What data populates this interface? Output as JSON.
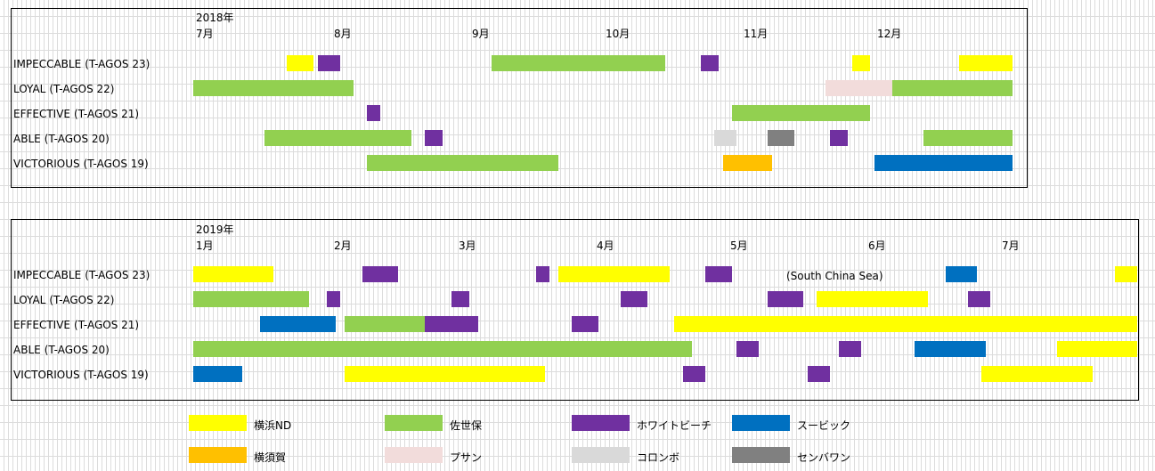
{
  "colors": {
    "yokohama": "#ffff00",
    "sasebo": "#92d050",
    "white_beach": "#7030a0",
    "subic": "#0070c0",
    "yokosuka": "#ffc000",
    "busan": "#f2dcdb",
    "colombo": "#d9d9d9",
    "sembawang": "#808080"
  },
  "legend": [
    {
      "key": "yokohama",
      "label": "横浜ND"
    },
    {
      "key": "sasebo",
      "label": "佐世保"
    },
    {
      "key": "white_beach",
      "label": "ホワイトビーチ"
    },
    {
      "key": "subic",
      "label": "スービック"
    },
    {
      "key": "yokosuka",
      "label": "横須賀"
    },
    {
      "key": "busan",
      "label": "プサン"
    },
    {
      "key": "colombo",
      "label": "コロンボ"
    },
    {
      "key": "sembawang",
      "label": "センバワン"
    }
  ],
  "chart_data": [
    {
      "type": "gantt",
      "year_label": "2018年",
      "months": [
        "7月",
        "8月",
        "9月",
        "10月",
        "11月",
        "12月"
      ],
      "rows": [
        {
          "ship": "IMPECCABLE",
          "hull": "(T-AGOS 23)",
          "bars": [
            {
              "start": "2018-07-22",
              "end": "2018-07-27",
              "key": "yokohama"
            },
            {
              "start": "2018-07-29",
              "end": "2018-08-02",
              "key": "white_beach"
            },
            {
              "start": "2018-09-06",
              "end": "2018-10-14",
              "key": "sasebo"
            },
            {
              "start": "2018-10-23",
              "end": "2018-10-26",
              "key": "white_beach"
            },
            {
              "start": "2018-11-26",
              "end": "2018-11-29",
              "key": "yokohama"
            },
            {
              "start": "2018-12-20",
              "end": "2018-12-31",
              "key": "yokohama"
            }
          ]
        },
        {
          "ship": "LOYAL",
          "hull": "(T-AGOS 22)",
          "bars": [
            {
              "start": "2018-07-01",
              "end": "2018-08-05",
              "key": "sasebo"
            },
            {
              "start": "2018-11-20",
              "end": "2018-12-04",
              "key": "busan"
            },
            {
              "start": "2018-12-05",
              "end": "2018-12-31",
              "key": "sasebo"
            }
          ]
        },
        {
          "ship": "EFFECTIVE",
          "hull": "(T-AGOS 21)",
          "bars": [
            {
              "start": "2018-08-09",
              "end": "2018-08-11",
              "key": "white_beach"
            },
            {
              "start": "2018-10-30",
              "end": "2018-11-29",
              "key": "sasebo"
            }
          ]
        },
        {
          "ship": "ABLE",
          "hull": "(T-AGOS 20)",
          "bars": [
            {
              "start": "2018-07-17",
              "end": "2018-08-18",
              "key": "sasebo"
            },
            {
              "start": "2018-08-22",
              "end": "2018-08-25",
              "key": "white_beach"
            },
            {
              "start": "2018-10-26",
              "end": "2018-10-30",
              "key": "colombo"
            },
            {
              "start": "2018-11-07",
              "end": "2018-11-12",
              "key": "sembawang"
            },
            {
              "start": "2018-11-21",
              "end": "2018-11-24",
              "key": "white_beach"
            },
            {
              "start": "2018-12-12",
              "end": "2018-12-31",
              "key": "sasebo"
            }
          ]
        },
        {
          "ship": "VICTORIOUS",
          "hull": "(T-AGOS 19)",
          "bars": [
            {
              "start": "2018-08-09",
              "end": "2018-09-20",
              "key": "sasebo"
            },
            {
              "start": "2018-10-28",
              "end": "2018-11-07",
              "key": "yokosuka"
            },
            {
              "start": "2018-12-01",
              "end": "2018-12-31",
              "key": "subic"
            }
          ]
        }
      ]
    },
    {
      "type": "gantt",
      "year_label": "2019年",
      "months": [
        "1月",
        "2月",
        "3月",
        "4月",
        "5月",
        "6月",
        "7月"
      ],
      "rows": [
        {
          "ship": "IMPECCABLE",
          "hull": "(T-AGOS 23)",
          "note": "(South China  Sea)",
          "bars": [
            {
              "start": "2019-01-01",
              "end": "2019-01-18",
              "key": "yokohama"
            },
            {
              "start": "2019-02-08",
              "end": "2019-02-15",
              "key": "white_beach"
            },
            {
              "start": "2019-03-19",
              "end": "2019-03-21",
              "key": "white_beach"
            },
            {
              "start": "2019-03-24",
              "end": "2019-04-17",
              "key": "yokohama"
            },
            {
              "start": "2019-04-26",
              "end": "2019-05-01",
              "key": "white_beach"
            },
            {
              "start": "2019-06-19",
              "end": "2019-06-25",
              "key": "subic"
            },
            {
              "start": "2019-07-27",
              "end": "2019-07-31",
              "key": "yokohama"
            }
          ]
        },
        {
          "ship": "LOYAL",
          "hull": "(T-AGOS 22)",
          "bars": [
            {
              "start": "2019-01-01",
              "end": "2019-01-26",
              "key": "sasebo"
            },
            {
              "start": "2019-01-31",
              "end": "2019-02-02",
              "key": "white_beach"
            },
            {
              "start": "2019-02-28",
              "end": "2019-03-03",
              "key": "white_beach"
            },
            {
              "start": "2019-04-07",
              "end": "2019-04-12",
              "key": "white_beach"
            },
            {
              "start": "2019-05-10",
              "end": "2019-05-17",
              "key": "white_beach"
            },
            {
              "start": "2019-05-21",
              "end": "2019-06-14",
              "key": "yokohama"
            },
            {
              "start": "2019-06-24",
              "end": "2019-06-28",
              "key": "white_beach"
            }
          ]
        },
        {
          "ship": "EFFECTIVE",
          "hull": "(T-AGOS 21)",
          "bars": [
            {
              "start": "2019-01-16",
              "end": "2019-02-01",
              "key": "subic"
            },
            {
              "start": "2019-02-04",
              "end": "2019-02-21",
              "key": "sasebo"
            },
            {
              "start": "2019-02-22",
              "end": "2019-03-05",
              "key": "white_beach"
            },
            {
              "start": "2019-03-27",
              "end": "2019-04-01",
              "key": "white_beach"
            },
            {
              "start": "2019-04-19",
              "end": "2019-07-31",
              "key": "yokohama"
            }
          ]
        },
        {
          "ship": "ABLE",
          "hull": "(T-AGOS 20)",
          "bars": [
            {
              "start": "2019-01-01",
              "end": "2019-02-12",
              "key": "sasebo"
            },
            {
              "start": "2019-02-13",
              "end": "2019-04-22",
              "key": "sasebo"
            },
            {
              "start": "2019-05-03",
              "end": "2019-05-07",
              "key": "white_beach"
            },
            {
              "start": "2019-05-26",
              "end": "2019-05-30",
              "key": "white_beach"
            },
            {
              "start": "2019-06-12",
              "end": "2019-06-27",
              "key": "subic"
            },
            {
              "start": "2019-07-14",
              "end": "2019-07-31",
              "key": "yokohama"
            }
          ]
        },
        {
          "ship": "VICTORIOUS",
          "hull": "(T-AGOS 19)",
          "bars": [
            {
              "start": "2019-01-01",
              "end": "2019-01-11",
              "key": "subic"
            },
            {
              "start": "2019-02-04",
              "end": "2019-03-20",
              "key": "yokohama"
            },
            {
              "start": "2019-04-21",
              "end": "2019-04-25",
              "key": "white_beach"
            },
            {
              "start": "2019-05-19",
              "end": "2019-05-23",
              "key": "white_beach"
            },
            {
              "start": "2019-06-27",
              "end": "2019-07-21",
              "key": "yokohama"
            }
          ]
        }
      ]
    }
  ]
}
